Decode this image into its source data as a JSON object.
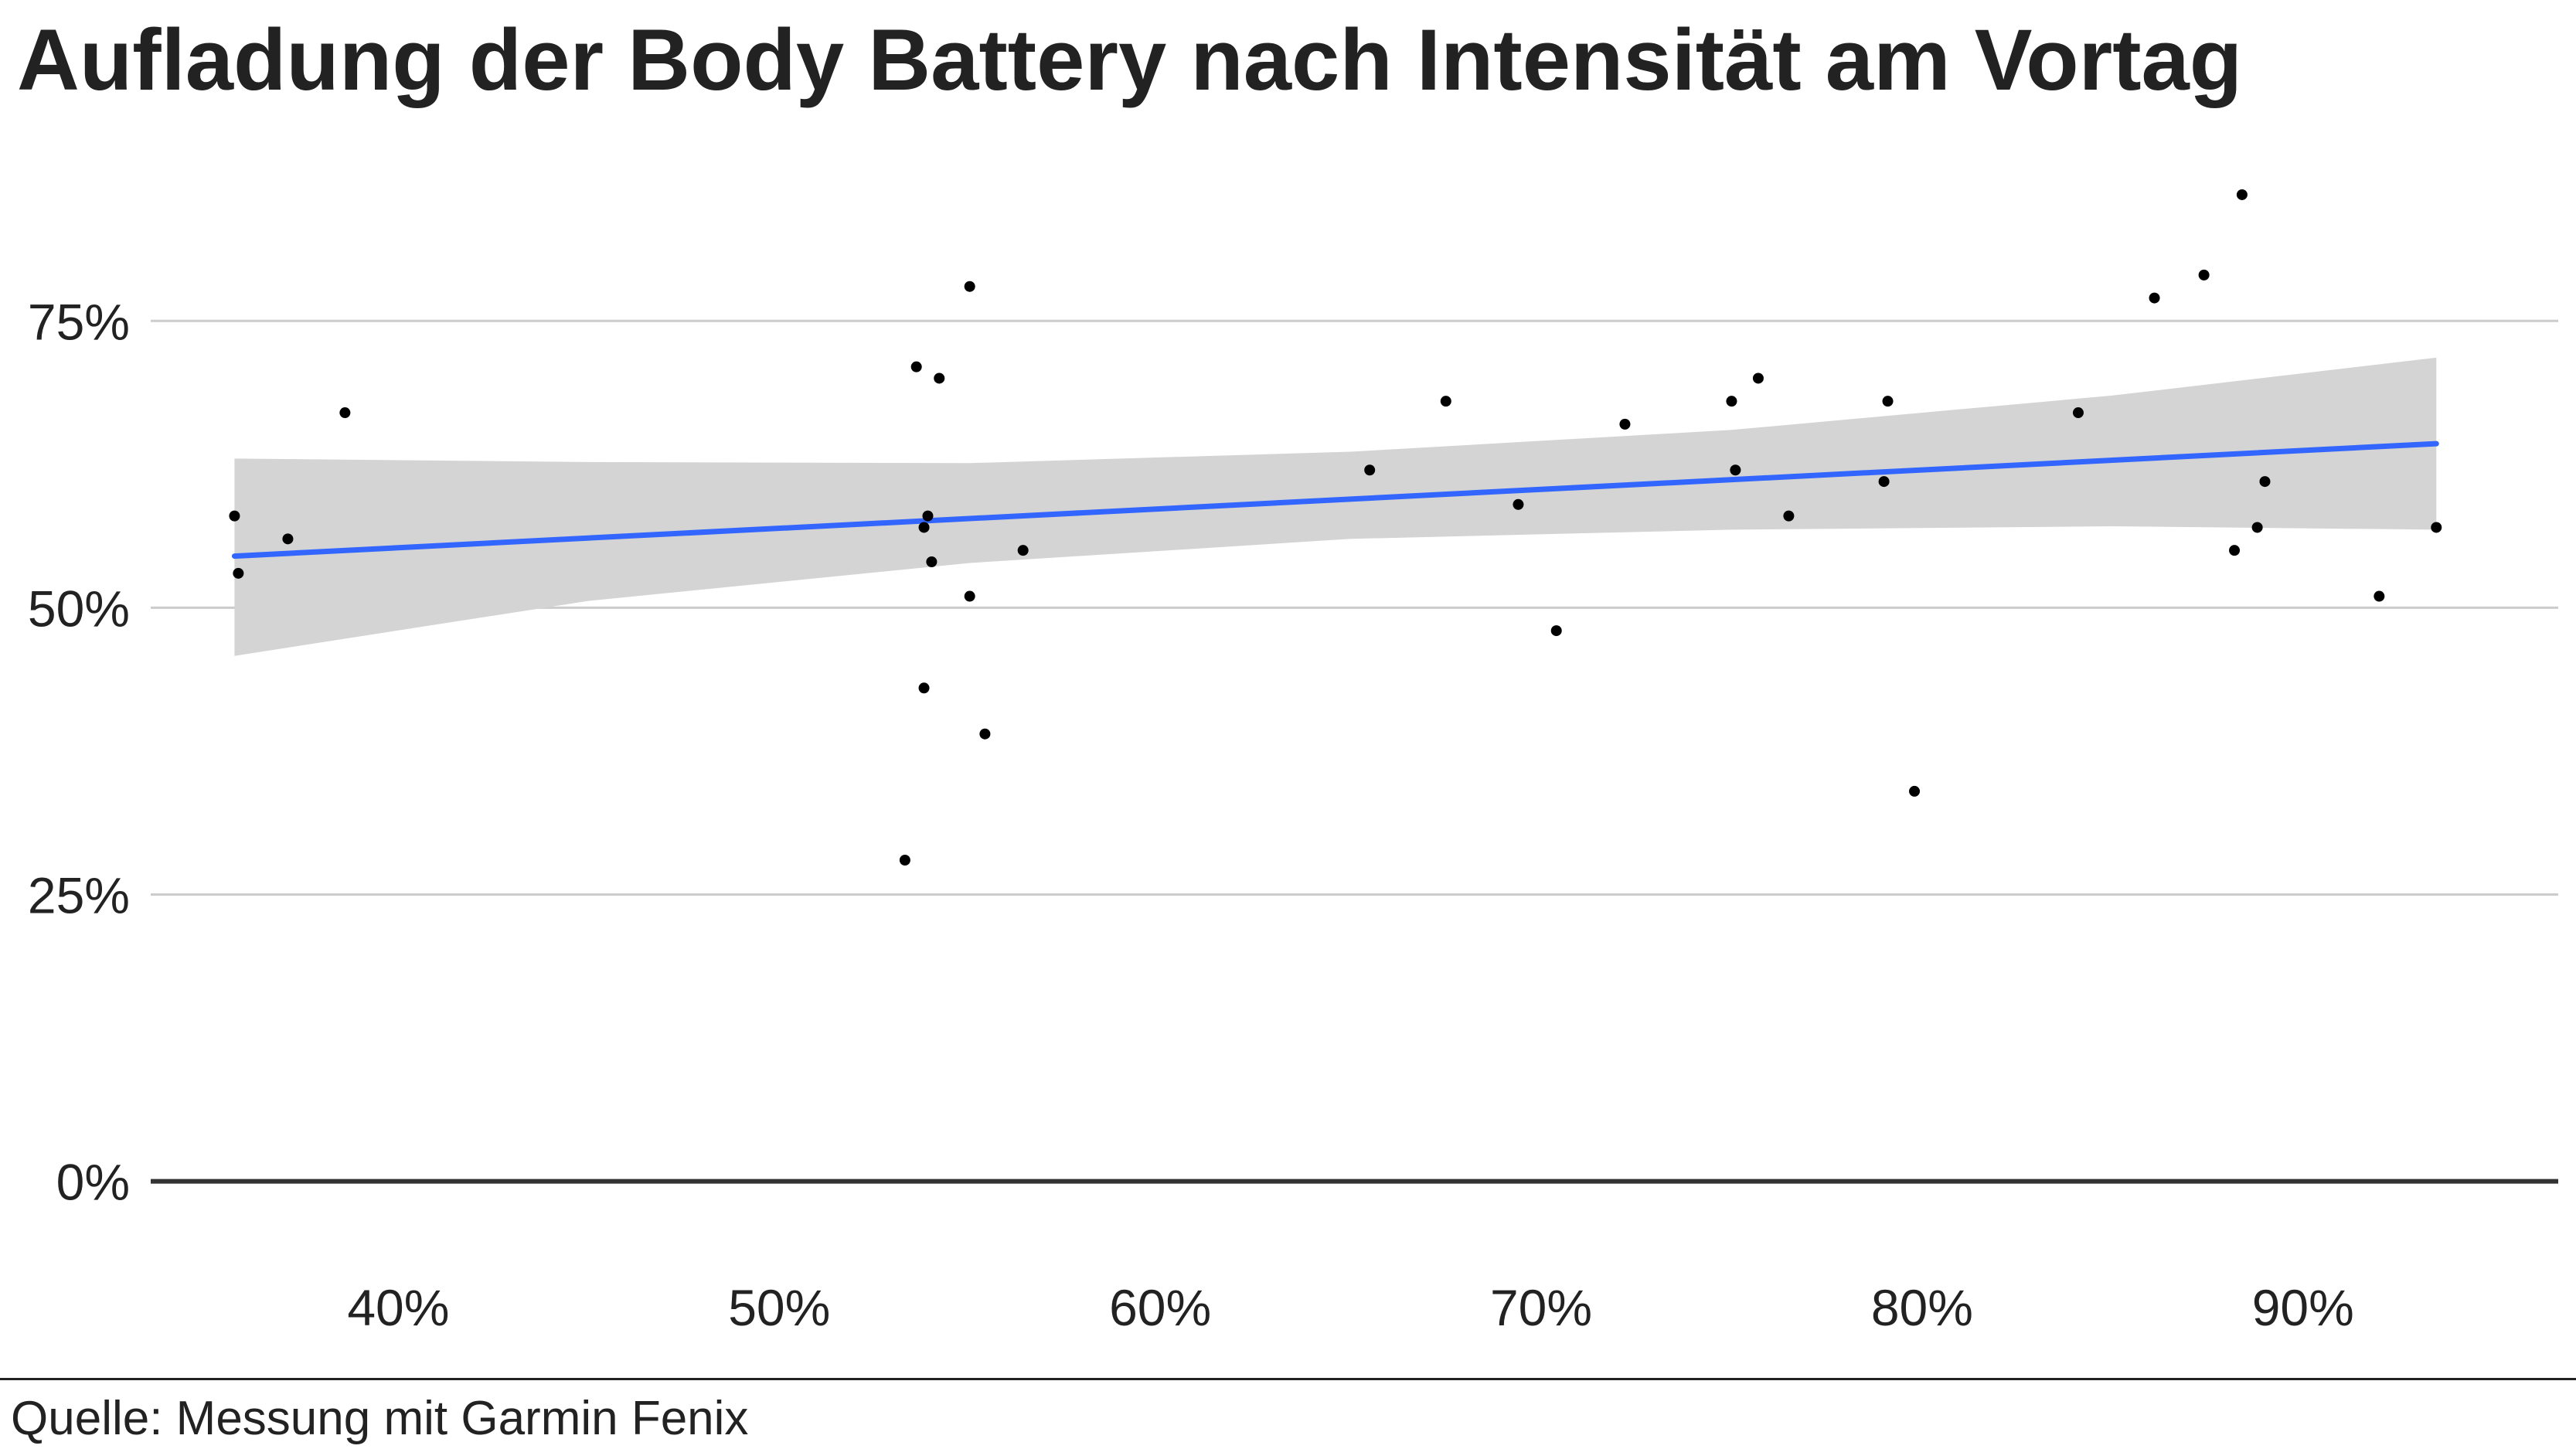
{
  "chart_data": {
    "type": "scatter",
    "title": "Aufladung der Body Battery nach Intensität am Vortag",
    "xlabel": "",
    "ylabel": "",
    "xlim": [
      33.5,
      96.7
    ],
    "ylim": [
      -7.5,
      89.5
    ],
    "x_ticks": [
      40,
      50,
      60,
      70,
      80,
      90
    ],
    "x_tick_labels": [
      "40%",
      "50%",
      "60%",
      "70%",
      "80%",
      "90%"
    ],
    "y_ticks": [
      0,
      25,
      50,
      75
    ],
    "y_tick_labels": [
      "0%",
      "25%",
      "50%",
      "75%"
    ],
    "grid": "horizontal",
    "legend": "none",
    "points": [
      {
        "x": 35.7,
        "y": 58
      },
      {
        "x": 35.8,
        "y": 53
      },
      {
        "x": 37.1,
        "y": 56
      },
      {
        "x": 38.6,
        "y": 67
      },
      {
        "x": 53.3,
        "y": 28
      },
      {
        "x": 53.6,
        "y": 71
      },
      {
        "x": 53.8,
        "y": 57
      },
      {
        "x": 53.8,
        "y": 43
      },
      {
        "x": 53.9,
        "y": 58
      },
      {
        "x": 54.0,
        "y": 54
      },
      {
        "x": 54.2,
        "y": 70
      },
      {
        "x": 55.0,
        "y": 78
      },
      {
        "x": 55.0,
        "y": 51
      },
      {
        "x": 55.4,
        "y": 39
      },
      {
        "x": 56.4,
        "y": 55
      },
      {
        "x": 65.5,
        "y": 62
      },
      {
        "x": 67.5,
        "y": 68
      },
      {
        "x": 69.4,
        "y": 59
      },
      {
        "x": 70.4,
        "y": 48
      },
      {
        "x": 72.2,
        "y": 66
      },
      {
        "x": 75.0,
        "y": 68
      },
      {
        "x": 75.1,
        "y": 62
      },
      {
        "x": 75.7,
        "y": 70
      },
      {
        "x": 76.5,
        "y": 58
      },
      {
        "x": 79.0,
        "y": 61
      },
      {
        "x": 79.1,
        "y": 68
      },
      {
        "x": 79.8,
        "y": 34
      },
      {
        "x": 84.1,
        "y": 67
      },
      {
        "x": 86.1,
        "y": 77
      },
      {
        "x": 87.4,
        "y": 79
      },
      {
        "x": 88.2,
        "y": 55
      },
      {
        "x": 88.4,
        "y": 86
      },
      {
        "x": 88.8,
        "y": 57
      },
      {
        "x": 89.0,
        "y": 61
      },
      {
        "x": 92.0,
        "y": 51
      },
      {
        "x": 93.5,
        "y": 57
      }
    ],
    "trend": {
      "method": "linear",
      "color": "#3366ff",
      "x": [
        35.7,
        93.5
      ],
      "y": [
        54.5,
        64.3
      ]
    },
    "confidence_band": {
      "color": "#d4d4d4",
      "x": [
        35.7,
        45,
        55,
        65,
        75,
        85,
        93.5
      ],
      "lower": [
        45.8,
        50.6,
        53.9,
        56.0,
        56.8,
        57.1,
        56.8
      ],
      "upper": [
        63.0,
        62.7,
        62.6,
        63.6,
        65.5,
        68.5,
        71.8
      ]
    },
    "colors": {
      "points": "#000000",
      "grid": "#cccccc",
      "baseline": "#333333"
    }
  },
  "source": "Quelle: Messung mit Garmin Fenix"
}
